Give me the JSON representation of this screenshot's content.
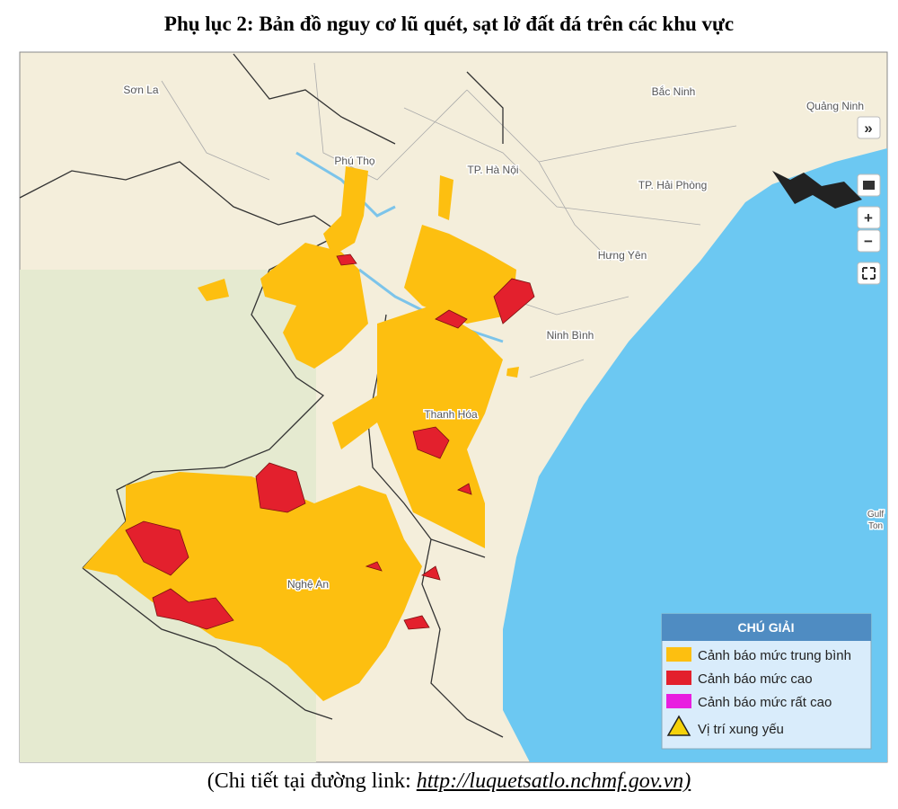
{
  "header": {
    "title": "Phụ lục 2: Bản đồ nguy cơ lũ quét, sạt lở đất đá trên các khu vực"
  },
  "map": {
    "places": [
      {
        "label": "Sơn La"
      },
      {
        "label": "Phú Thọ"
      },
      {
        "label": "TP. Hà Nội"
      },
      {
        "label": "Bắc Ninh"
      },
      {
        "label": "Quảng Ninh"
      },
      {
        "label": "TP. Hải Phòng"
      },
      {
        "label": "Hưng Yên"
      },
      {
        "label": "Ninh Bình"
      },
      {
        "label": "Thanh Hóa"
      },
      {
        "label": "Nghệ An"
      },
      {
        "label": "Gulf"
      },
      {
        "label": "Ton"
      }
    ],
    "controls": [
      "»",
      "+",
      "−"
    ],
    "legend": {
      "title": "CHÚ GIẢI",
      "items": [
        {
          "label": "Cảnh báo mức trung bình",
          "color": "#fdbf10"
        },
        {
          "label": "Cảnh báo mức cao",
          "color": "#e3202d"
        },
        {
          "label": "Cảnh báo mức rất cao",
          "color": "#e81ee0"
        },
        {
          "label": "Vị trí xung yếu"
        }
      ]
    }
  },
  "footer": {
    "prefix": "(Chi tiết tại đường link:",
    "link": "http://luquetsatlo.nchmf.gov.vn)"
  }
}
